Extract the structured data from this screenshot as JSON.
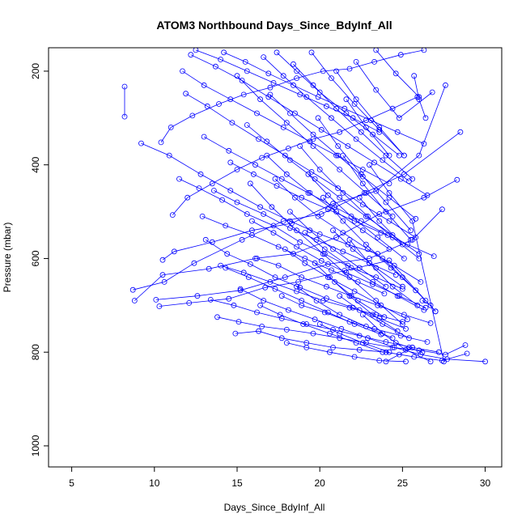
{
  "chart_data": {
    "type": "line",
    "title": "ATOM3 Northbound Days_Since_BdyInf_All",
    "xlabel": "Days_Since_BdyInf_All",
    "ylabel": "Pressure (mbar)",
    "xlim": [
      3.6,
      31
    ],
    "ylim": [
      1045,
      150
    ],
    "y_reversed": true,
    "grid": false,
    "legend": "none",
    "line_color": "#0000ff",
    "marker": "open-circle",
    "x_ticks": [
      "5",
      "10",
      "15",
      "20",
      "25",
      "30"
    ],
    "x_tick_values": [
      5,
      10,
      15,
      20,
      25,
      30
    ],
    "y_ticks": [
      "200",
      "400",
      "600",
      "800",
      "1000"
    ],
    "y_tick_values": [
      200,
      400,
      600,
      800,
      1000
    ],
    "series": [
      {
        "x": [
          8.2,
          8.2
        ],
        "y": [
          233,
          297
        ]
      },
      {
        "x": [
          8.7,
          10.6,
          12.4,
          15.3,
          17.8,
          20.1,
          22.7,
          25.1,
          28.5
        ],
        "y": [
          667,
          650,
          610,
          560,
          520,
          505,
          460,
          420,
          330
        ]
      },
      {
        "x": [
          8.8,
          10.5,
          13.3,
          16.1,
          18.4,
          21.0,
          23.6,
          26.3,
          28.3
        ],
        "y": [
          690,
          635,
          622,
          600,
          590,
          555,
          505,
          470,
          432
        ]
      },
      {
        "x": [
          10.1,
          12.6,
          15.2,
          17.9,
          20.5,
          23.0,
          25.6,
          27.4
        ],
        "y": [
          688,
          680,
          668,
          640,
          612,
          600,
          560,
          495
        ]
      },
      {
        "x": [
          10.3,
          12.1,
          14.5,
          16.7,
          18.7,
          21.5,
          24.2,
          27.0
        ],
        "y": [
          702,
          695,
          686,
          662,
          650,
          626,
          604,
          713
        ]
      },
      {
        "x": [
          10.5,
          11.2,
          13.5,
          15.9,
          18.3,
          20.8,
          23.4,
          26.0,
          27.6
        ],
        "y": [
          603,
          585,
          565,
          540,
          525,
          483,
          456,
          380,
          230
        ]
      },
      {
        "x": [
          10.4,
          11.0,
          12.3,
          13.9,
          15.4,
          17.0,
          18.6,
          20.2,
          21.8,
          23.3,
          24.9,
          26.3
        ],
        "y": [
          352,
          320,
          295,
          270,
          250,
          235,
          215,
          200,
          195,
          180,
          165,
          155
        ]
      },
      {
        "x": [
          9.2,
          10.9,
          12.8,
          14.6,
          16.4,
          18.2,
          20.0,
          21.7,
          23.5
        ],
        "y": [
          354,
          380,
          420,
          455,
          490,
          520,
          548,
          570,
          590
        ]
      },
      {
        "x": [
          11.1,
          12.0,
          13.5,
          15.0,
          16.5,
          18.1,
          19.6,
          21.2,
          22.8,
          24.4,
          25.9
        ],
        "y": [
          507,
          470,
          440,
          410,
          385,
          365,
          345,
          330,
          305,
          280,
          255
        ]
      },
      {
        "x": [
          11.5,
          12.7,
          14.1,
          15.6,
          17.2,
          18.8,
          20.3,
          21.9,
          23.4,
          25.0
        ],
        "y": [
          430,
          450,
          475,
          505,
          530,
          565,
          590,
          620,
          640,
          665
        ]
      },
      {
        "x": [
          11.9,
          13.2,
          14.7,
          16.3,
          17.9,
          19.5,
          21.1,
          22.6,
          24.2,
          25.8
        ],
        "y": [
          248,
          275,
          310,
          345,
          380,
          415,
          450,
          485,
          520,
          555
        ]
      },
      {
        "x": [
          12.2,
          13.7,
          15.3,
          16.9,
          18.5,
          20.1,
          21.7,
          23.3,
          24.9,
          26.5
        ],
        "y": [
          165,
          190,
          220,
          255,
          290,
          325,
          360,
          395,
          430,
          465
        ]
      },
      {
        "x": [
          13.1,
          14.4,
          15.8,
          17.3,
          18.8,
          20.4,
          22.0,
          23.6,
          25.2
        ],
        "y": [
          560,
          590,
          612,
          640,
          662,
          685,
          705,
          728,
          750
        ]
      },
      {
        "x": [
          13.4,
          14.8,
          16.2,
          17.7,
          19.2,
          20.8,
          22.4,
          24.0,
          25.6,
          27.2
        ],
        "y": [
          688,
          700,
          715,
          728,
          740,
          752,
          765,
          778,
          790,
          800
        ]
      },
      {
        "x": [
          13.8,
          15.1,
          16.5,
          18.0,
          19.6,
          21.2,
          22.8,
          24.4,
          26.0,
          27.6,
          28.8
        ],
        "y": [
          725,
          735,
          745,
          752,
          760,
          770,
          780,
          790,
          796,
          805,
          785
        ]
      },
      {
        "x": [
          14.9,
          16.3,
          17.7,
          19.2,
          20.8,
          22.4,
          24.0,
          25.7,
          27.4,
          28.9
        ],
        "y": [
          760,
          755,
          770,
          780,
          790,
          795,
          800,
          810,
          818,
          803
        ]
      },
      {
        "x": [
          15.2,
          16.6,
          18.1,
          19.7,
          21.3,
          22.9,
          24.5,
          26.1,
          27.7,
          30.0
        ],
        "y": [
          665,
          690,
          710,
          730,
          750,
          770,
          790,
          805,
          815,
          820
        ]
      },
      {
        "x": [
          14.2,
          15.5,
          16.9,
          18.4,
          19.9,
          21.5,
          23.1,
          24.7,
          26.3
        ],
        "y": [
          160,
          180,
          205,
          230,
          255,
          280,
          305,
          330,
          355
        ]
      },
      {
        "x": [
          14.6,
          16.0,
          17.4,
          18.9,
          20.5,
          22.1,
          23.7,
          25.3,
          26.9
        ],
        "y": [
          395,
          420,
          445,
          470,
          495,
          520,
          545,
          570,
          595
        ]
      },
      {
        "x": [
          15.6,
          16.8,
          18.2,
          19.7,
          21.2,
          22.8,
          24.4,
          26.0
        ],
        "y": [
          315,
          350,
          390,
          430,
          470,
          510,
          550,
          590
        ]
      },
      {
        "x": [
          15.9,
          17.2,
          18.6,
          20.1,
          21.6,
          23.2,
          24.8,
          26.4
        ],
        "y": [
          520,
          545,
          575,
          605,
          630,
          655,
          680,
          705
        ]
      },
      {
        "x": [
          16.2,
          17.5,
          18.9,
          20.4,
          21.9,
          23.5,
          25.1,
          26.7
        ],
        "y": [
          600,
          615,
          640,
          660,
          680,
          700,
          720,
          738
        ]
      },
      {
        "x": [
          16.6,
          17.8,
          19.2,
          20.7,
          22.2,
          23.8,
          25.4
        ],
        "y": [
          170,
          210,
          255,
          300,
          345,
          390,
          435
        ]
      },
      {
        "x": [
          17.0,
          18.2,
          19.6,
          21.1,
          22.6,
          24.2,
          25.8
        ],
        "y": [
          250,
          290,
          335,
          380,
          425,
          470,
          515
        ]
      },
      {
        "x": [
          17.3,
          18.5,
          19.9,
          21.4,
          22.9,
          24.5,
          26.1
        ],
        "y": [
          430,
          470,
          510,
          545,
          580,
          615,
          650
        ]
      },
      {
        "x": [
          17.7,
          18.9,
          20.3,
          21.8,
          23.3,
          24.9,
          26.5
        ],
        "y": [
          680,
          700,
          715,
          735,
          750,
          765,
          778
        ]
      },
      {
        "x": [
          18.0,
          19.2,
          20.6,
          22.1,
          23.6,
          25.2
        ],
        "y": [
          780,
          790,
          800,
          810,
          818,
          820
        ]
      },
      {
        "x": [
          18.4,
          19.6,
          21.0,
          22.5,
          24.0,
          25.6
        ],
        "y": [
          185,
          230,
          280,
          330,
          380,
          430
        ]
      },
      {
        "x": [
          18.8,
          20.0,
          21.4,
          22.9,
          24.4,
          26.0
        ],
        "y": [
          360,
          410,
          460,
          510,
          555,
          600
        ]
      },
      {
        "x": [
          19.1,
          20.3,
          21.7,
          23.2,
          24.7,
          26.3
        ],
        "y": [
          545,
          580,
          615,
          650,
          680,
          710
        ]
      },
      {
        "x": [
          19.5,
          20.7,
          22.1,
          23.6,
          25.1
        ],
        "y": [
          160,
          215,
          270,
          325,
          380
        ]
      },
      {
        "x": [
          19.9,
          21.1,
          22.5,
          24.0,
          25.5
        ],
        "y": [
          300,
          360,
          420,
          480,
          540
        ]
      },
      {
        "x": [
          20.2,
          21.4,
          22.8,
          24.3,
          25.8
        ],
        "y": [
          470,
          520,
          570,
          620,
          668
        ]
      },
      {
        "x": [
          20.6,
          21.8,
          23.2,
          24.7
        ],
        "y": [
          640,
          680,
          720,
          755
        ]
      },
      {
        "x": [
          21.0,
          22.2,
          23.6,
          25.1
        ],
        "y": [
          200,
          260,
          320,
          380
        ]
      },
      {
        "x": [
          21.4,
          22.6,
          24.0,
          25.5
        ],
        "y": [
          380,
          440,
          500,
          560
        ]
      },
      {
        "x": [
          21.8,
          23.0,
          24.4,
          25.9
        ],
        "y": [
          560,
          610,
          660,
          700
        ]
      },
      {
        "x": [
          22.2,
          23.4,
          24.8,
          26.8
        ],
        "y": [
          180,
          240,
          300,
          245
        ]
      },
      {
        "x": [
          22.6,
          23.8,
          25.2,
          26.7
        ],
        "y": [
          720,
          760,
          795,
          820
        ]
      },
      {
        "x": [
          23.0,
          24.2,
          25.6,
          27.5
        ],
        "y": [
          400,
          460,
          520,
          820
        ]
      },
      {
        "x": [
          23.4,
          24.6,
          26.0
        ],
        "y": [
          155,
          205,
          255
        ]
      },
      {
        "x": [
          23.8,
          25.0,
          26.4
        ],
        "y": [
          600,
          640,
          690
        ]
      },
      {
        "x": [
          12.5,
          14.0,
          15.6,
          17.2,
          18.8,
          20.4,
          22.0,
          23.6
        ],
        "y": [
          155,
          175,
          200,
          225,
          250,
          275,
          300,
          330
        ]
      },
      {
        "x": [
          13.0,
          14.5,
          16.1,
          17.7,
          19.3,
          20.9,
          22.5,
          24.1
        ],
        "y": [
          340,
          370,
          400,
          430,
          460,
          490,
          520,
          550
        ]
      },
      {
        "x": [
          13.6,
          15.0,
          16.6,
          18.2,
          19.8,
          21.4,
          23.0,
          24.6
        ],
        "y": [
          455,
          480,
          505,
          535,
          560,
          585,
          610,
          635
        ]
      },
      {
        "x": [
          14.0,
          15.4,
          17.0,
          18.6,
          20.2,
          21.8,
          23.4,
          25.0
        ],
        "y": [
          615,
          630,
          650,
          670,
          690,
          705,
          720,
          735
        ]
      },
      {
        "x": [
          15.0,
          16.4,
          18.0,
          19.6,
          21.2,
          22.8,
          24.4
        ],
        "y": [
          210,
          260,
          310,
          360,
          410,
          460,
          510
        ]
      },
      {
        "x": [
          15.8,
          17.1,
          18.6,
          20.2,
          21.8,
          23.4,
          25.0
        ],
        "y": [
          440,
          490,
          540,
          590,
          640,
          690,
          740
        ]
      },
      {
        "x": [
          16.4,
          17.6,
          19.0,
          20.6,
          22.2,
          23.8
        ],
        "y": [
          700,
          720,
          740,
          760,
          780,
          800
        ]
      },
      {
        "x": [
          17.4,
          18.6,
          20.0,
          21.6,
          23.2,
          24.8
        ],
        "y": [
          160,
          200,
          245,
          290,
          335,
          380
        ]
      },
      {
        "x": [
          17.9,
          19.1,
          20.5,
          22.1,
          23.7,
          25.3
        ],
        "y": [
          580,
          610,
          640,
          670,
          700,
          730
        ]
      },
      {
        "x": [
          18.6,
          19.8,
          21.2,
          22.8,
          24.4
        ],
        "y": [
          660,
          690,
          720,
          745,
          770
        ]
      },
      {
        "x": [
          19.3,
          20.5,
          21.9,
          23.5,
          25.1
        ],
        "y": [
          420,
          465,
          510,
          555,
          600
        ]
      },
      {
        "x": [
          20.0,
          21.2,
          22.6,
          24.2
        ],
        "y": [
          740,
          760,
          780,
          800
        ]
      },
      {
        "x": [
          20.8,
          22.0,
          23.4,
          25.0
        ],
        "y": [
          540,
          580,
          620,
          660
        ]
      },
      {
        "x": [
          21.6,
          22.8,
          24.2
        ],
        "y": [
          260,
          320,
          380
        ]
      },
      {
        "x": [
          22.4,
          23.6,
          25.0
        ],
        "y": [
          470,
          520,
          570
        ]
      },
      {
        "x": [
          11.7,
          13.0,
          14.6,
          16.2,
          17.8,
          19.4,
          21.0,
          22.6,
          24.2
        ],
        "y": [
          200,
          230,
          260,
          290,
          320,
          350,
          380,
          410,
          440
        ]
      },
      {
        "x": [
          12.9,
          14.3,
          15.9,
          17.5,
          19.1,
          20.7,
          22.3,
          23.9
        ],
        "y": [
          510,
          530,
          550,
          575,
          600,
          625,
          650,
          675
        ]
      },
      {
        "x": [
          14.3,
          15.7,
          17.3,
          18.9,
          20.5,
          22.1,
          23.7
        ],
        "y": [
          620,
          640,
          665,
          690,
          715,
          740,
          762
        ]
      },
      {
        "x": [
          16.8,
          18.0,
          19.4,
          21.0,
          22.6,
          24.2
        ],
        "y": [
          380,
          420,
          460,
          500,
          540,
          580
        ]
      },
      {
        "x": [
          18.2,
          19.4,
          20.8,
          22.4,
          24.0
        ],
        "y": [
          500,
          540,
          580,
          620,
          660
        ]
      },
      {
        "x": [
          19.7,
          20.9,
          22.3,
          23.9
        ],
        "y": [
          610,
          650,
          690,
          725
        ]
      },
      {
        "x": [
          21.2,
          22.4,
          23.8,
          25.4
        ],
        "y": [
          680,
          710,
          740,
          770
        ]
      },
      {
        "x": [
          24.6,
          25.4,
          26.2
        ],
        "y": [
          780,
          790,
          800
        ]
      },
      {
        "x": [
          24.0,
          24.8,
          25.6
        ],
        "y": [
          820,
          805,
          790
        ]
      },
      {
        "x": [
          25.7,
          26.0,
          26.4
        ],
        "y": [
          210,
          260,
          300
        ]
      },
      {
        "x": [
          26.2,
          26.7,
          27.0
        ],
        "y": [
          690,
          700,
          713
        ]
      }
    ]
  }
}
